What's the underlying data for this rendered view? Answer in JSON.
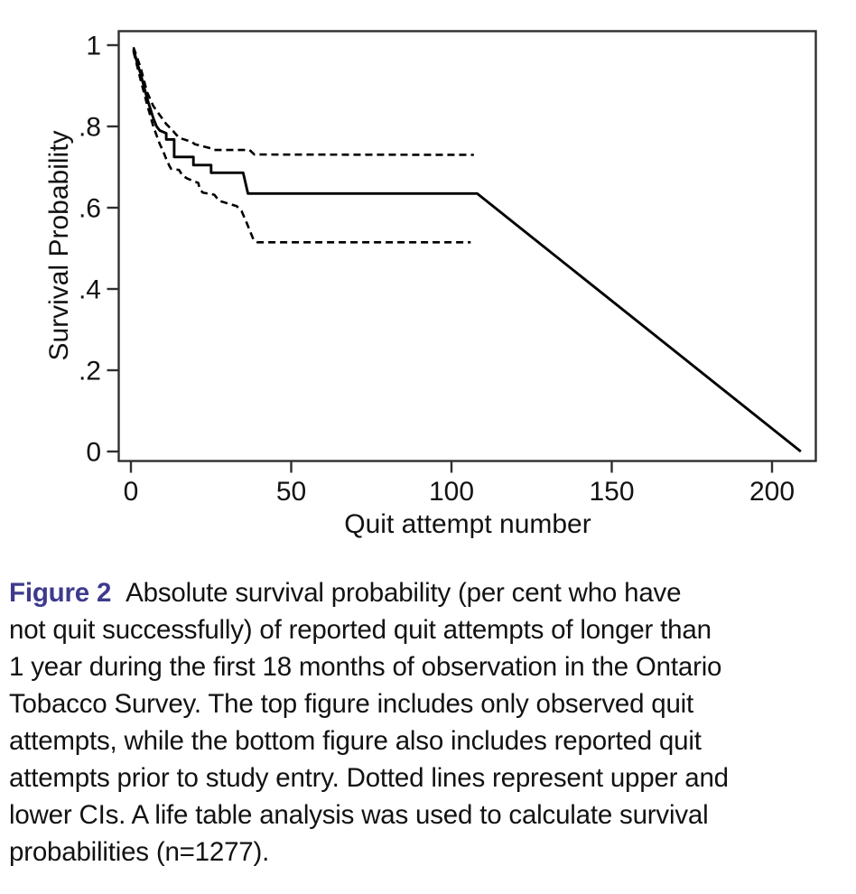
{
  "colors": {
    "figure_label": "#3d3a8e",
    "line": "#000000",
    "frame": "#2f2f2f",
    "text": "#121212",
    "background": "#ffffff"
  },
  "chart_data": {
    "type": "line",
    "title": "",
    "xlabel": "Quit attempt number",
    "ylabel": "Survival Probability",
    "xlim": [
      0,
      213
    ],
    "ylim": [
      -0.02,
      1.035
    ],
    "grid": false,
    "legend": "none",
    "xticks": [
      0,
      50,
      100,
      150,
      200
    ],
    "xtick_labels": [
      "0",
      "50",
      "100",
      "150",
      "200"
    ],
    "yticks": [
      0,
      0.2,
      0.4,
      0.6,
      0.8,
      1
    ],
    "ytick_labels": [
      "0",
      ".2",
      ".4",
      ".6",
      ".8",
      "1"
    ],
    "series": [
      {
        "name": "survival-estimate",
        "style": "solid",
        "points": [
          [
            0.8,
            0.99
          ],
          [
            2,
            0.955
          ],
          [
            3,
            0.93
          ],
          [
            4,
            0.9
          ],
          [
            5,
            0.87
          ],
          [
            6,
            0.845
          ],
          [
            7,
            0.82
          ],
          [
            8,
            0.8
          ],
          [
            9,
            0.79
          ],
          [
            11,
            0.783
          ],
          [
            11,
            0.768
          ],
          [
            13.5,
            0.768
          ],
          [
            13.5,
            0.725
          ],
          [
            19.5,
            0.725
          ],
          [
            19.5,
            0.705
          ],
          [
            25,
            0.705
          ],
          [
            25,
            0.686
          ],
          [
            35,
            0.686
          ],
          [
            36.5,
            0.635
          ],
          [
            108,
            0.635
          ],
          [
            209,
            0
          ]
        ]
      },
      {
        "name": "upper-ci",
        "style": "dashed",
        "points": [
          [
            0.8,
            0.995
          ],
          [
            3,
            0.945
          ],
          [
            5,
            0.885
          ],
          [
            7,
            0.85
          ],
          [
            9,
            0.828
          ],
          [
            11,
            0.806
          ],
          [
            13,
            0.79
          ],
          [
            14,
            0.781
          ],
          [
            15,
            0.772
          ],
          [
            19,
            0.762
          ],
          [
            20,
            0.756
          ],
          [
            25,
            0.746
          ],
          [
            26,
            0.742
          ],
          [
            37,
            0.742
          ],
          [
            38.5,
            0.731
          ],
          [
            107,
            0.73
          ]
        ]
      },
      {
        "name": "lower-ci",
        "style": "dashed",
        "points": [
          [
            0.8,
            0.985
          ],
          [
            3,
            0.915
          ],
          [
            5,
            0.855
          ],
          [
            7,
            0.8
          ],
          [
            9,
            0.757
          ],
          [
            10,
            0.74
          ],
          [
            11,
            0.72
          ],
          [
            12,
            0.703
          ],
          [
            12.5,
            0.696
          ],
          [
            15,
            0.693
          ],
          [
            16,
            0.68
          ],
          [
            17.5,
            0.672
          ],
          [
            21,
            0.661
          ],
          [
            21.5,
            0.645
          ],
          [
            22.5,
            0.637
          ],
          [
            26,
            0.632
          ],
          [
            27.5,
            0.617
          ],
          [
            33,
            0.604
          ],
          [
            34.5,
            0.592
          ],
          [
            36,
            0.565
          ],
          [
            38.3,
            0.52
          ],
          [
            39.5,
            0.515
          ],
          [
            106,
            0.515
          ]
        ]
      }
    ]
  },
  "caption": {
    "label": "Figure 2",
    "lines": [
      "Absolute survival probability (per cent who have",
      "not quit successfully) of reported quit attempts of longer than",
      "1 year during the first 18 months of observation in the Ontario",
      "Tobacco Survey. The top figure includes only observed quit",
      "attempts, while the bottom figure also includes reported quit",
      "attempts prior to study entry. Dotted lines represent upper and",
      "lower CIs. A life table analysis was used to calculate survival",
      "probabilities (n=1277)."
    ]
  }
}
